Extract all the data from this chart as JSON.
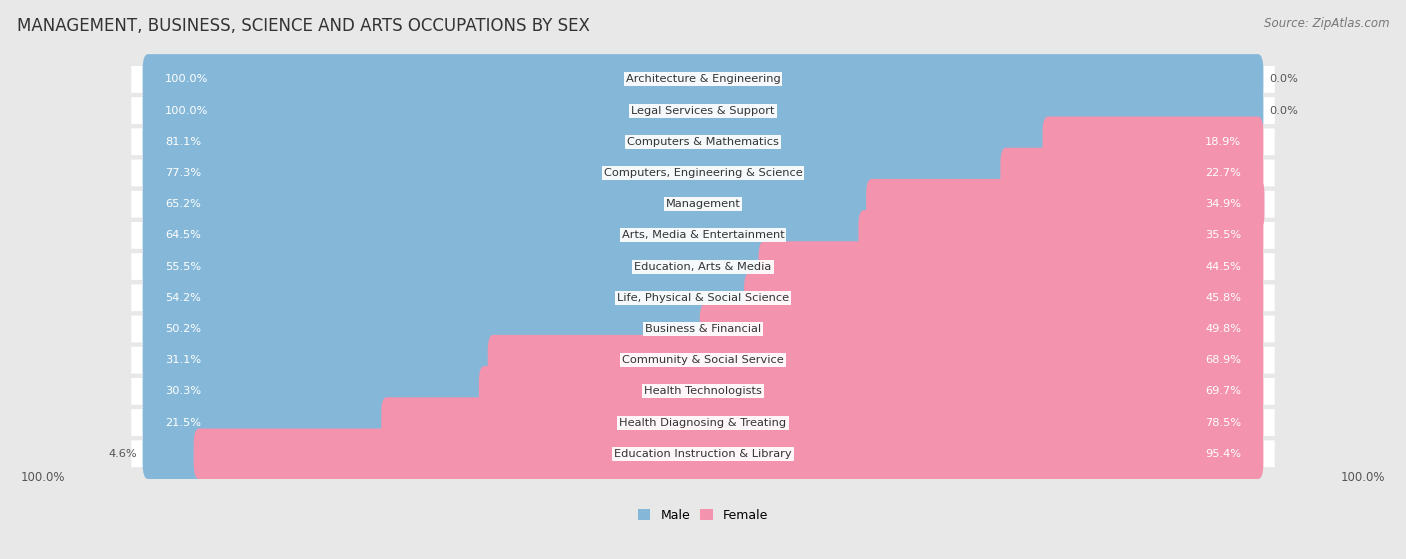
{
  "title": "MANAGEMENT, BUSINESS, SCIENCE AND ARTS OCCUPATIONS BY SEX",
  "source": "Source: ZipAtlas.com",
  "categories": [
    "Architecture & Engineering",
    "Legal Services & Support",
    "Computers & Mathematics",
    "Computers, Engineering & Science",
    "Management",
    "Arts, Media & Entertainment",
    "Education, Arts & Media",
    "Life, Physical & Social Science",
    "Business & Financial",
    "Community & Social Service",
    "Health Technologists",
    "Health Diagnosing & Treating",
    "Education Instruction & Library"
  ],
  "male": [
    100.0,
    100.0,
    81.1,
    77.3,
    65.2,
    64.5,
    55.5,
    54.2,
    50.2,
    31.1,
    30.3,
    21.5,
    4.6
  ],
  "female": [
    0.0,
    0.0,
    18.9,
    22.7,
    34.9,
    35.5,
    44.5,
    45.8,
    49.8,
    68.9,
    69.7,
    78.5,
    95.4
  ],
  "male_color": "#85b8d8",
  "female_color": "#f393ae",
  "bg_color": "#e8e8e8",
  "bar_bg_color": "#ffffff",
  "row_bg_color": "#f5f5f5",
  "bar_height": 0.62,
  "title_fontsize": 12,
  "label_fontsize": 8.2,
  "tick_fontsize": 8.5,
  "source_fontsize": 8.5
}
